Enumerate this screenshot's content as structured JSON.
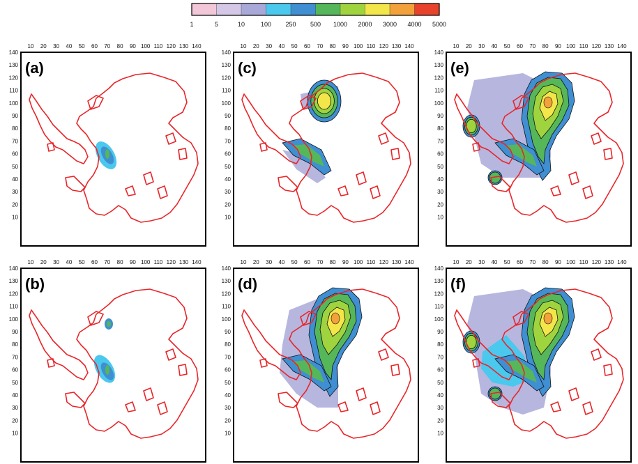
{
  "colorbar": {
    "ticks": [
      "1",
      "5",
      "10",
      "100",
      "250",
      "500",
      "1000",
      "2000",
      "3000",
      "4000",
      "5000"
    ],
    "colors": [
      "#ffffff",
      "#f2c8d8",
      "#d4c8e6",
      "#a9a9d9",
      "#4bc8ee",
      "#3f8fd2",
      "#55b75a",
      "#9fd43f",
      "#f2e64a",
      "#f3a13a",
      "#e8422c"
    ]
  },
  "axes": {
    "x_ticks": [
      "10",
      "20",
      "30",
      "40",
      "50",
      "60",
      "70",
      "80",
      "90",
      "100",
      "110",
      "120",
      "130",
      "140"
    ],
    "y_ticks": [
      "140",
      "130",
      "120",
      "110",
      "100",
      "90",
      "80",
      "70",
      "60",
      "50",
      "40",
      "30",
      "20",
      "10"
    ]
  },
  "coastline_color": "#e8262a",
  "panels": [
    {
      "label": "(a)"
    },
    {
      "label": "(b)"
    },
    {
      "label": "(c)"
    },
    {
      "label": "(d)"
    },
    {
      "label": "(e)"
    },
    {
      "label": "(f)"
    }
  ]
}
